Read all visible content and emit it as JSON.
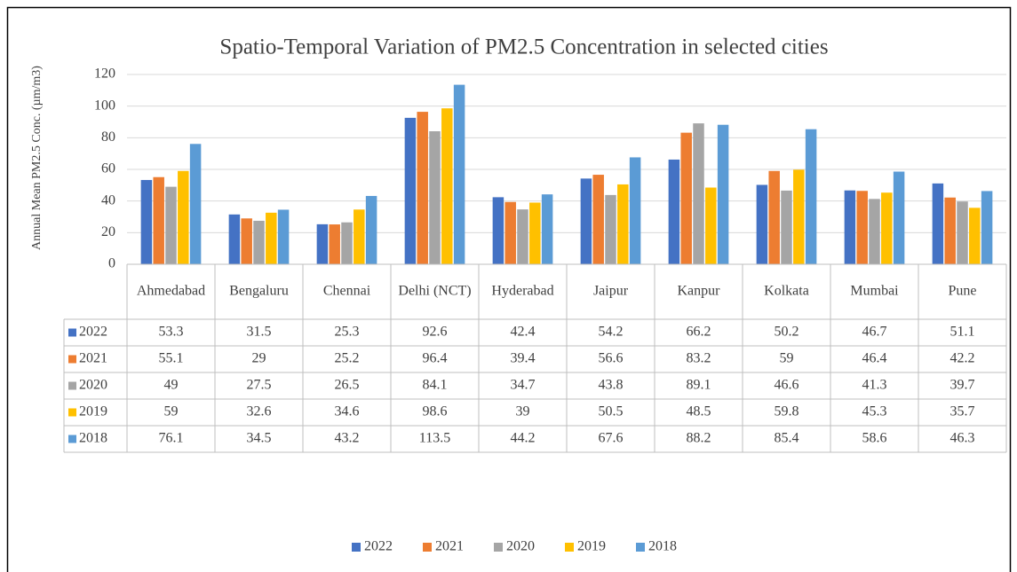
{
  "chart_data": {
    "type": "bar",
    "title": "Spatio-Temporal Variation of PM2.5 Concentration in selected cities",
    "y_label": "Annual Mean PM2.5 Conc. (µm/m3)",
    "categories": [
      "Ahmedabad",
      "Bengaluru",
      "Chennai",
      "Delhi (NCT)",
      "Hyderabad",
      "Jaipur",
      "Kanpur",
      "Kolkata",
      "Mumbai",
      "Pune"
    ],
    "series": [
      {
        "name": "2022",
        "color": "#4472c4",
        "values": [
          53.3,
          31.5,
          25.3,
          92.6,
          42.4,
          54.2,
          66.2,
          50.2,
          46.7,
          51.1
        ]
      },
      {
        "name": "2021",
        "color": "#ed7d31",
        "values": [
          55.1,
          29,
          25.2,
          96.4,
          39.4,
          56.6,
          83.2,
          59,
          46.4,
          42.2
        ]
      },
      {
        "name": "2020",
        "color": "#a5a5a5",
        "values": [
          49,
          27.5,
          26.5,
          84.1,
          34.7,
          43.8,
          89.1,
          46.6,
          41.3,
          39.7
        ]
      },
      {
        "name": "2019",
        "color": "#ffc000",
        "values": [
          59,
          32.6,
          34.6,
          98.6,
          39,
          50.5,
          48.5,
          59.8,
          45.3,
          35.7
        ]
      },
      {
        "name": "2018",
        "color": "#5b9bd5",
        "values": [
          76.1,
          34.5,
          43.2,
          113.5,
          44.2,
          67.6,
          88.2,
          85.4,
          58.6,
          46.3
        ]
      }
    ],
    "ylim": [
      0,
      120
    ],
    "yticks": [
      0,
      20,
      40,
      60,
      80,
      100,
      120
    ],
    "grid": true,
    "legend": "bottom",
    "data_table": true
  }
}
